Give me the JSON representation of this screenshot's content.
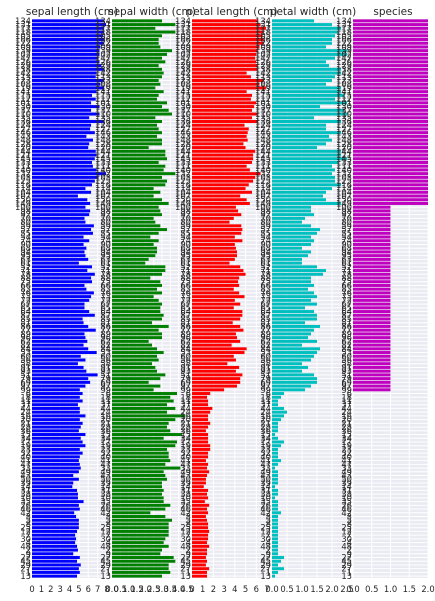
{
  "chart_data": [
    {
      "type": "bar",
      "orientation": "horizontal",
      "title": "sepal length (cm)",
      "color": "#0000ff",
      "xlim": [
        0,
        8
      ],
      "xticks": [
        "0",
        "1",
        "2",
        "3",
        "4",
        "5",
        "6",
        "7",
        "8"
      ]
    },
    {
      "type": "bar",
      "orientation": "horizontal",
      "title": "sepal width (cm)",
      "color": "#008000",
      "xlim": [
        0,
        4.5
      ],
      "xticks": [
        "0.0",
        "0.5",
        "1.0",
        "1.5",
        "2.0",
        "2.5",
        "3.0",
        "3.5",
        "4.0",
        "4.5"
      ]
    },
    {
      "type": "bar",
      "orientation": "horizontal",
      "title": "petal length (cm)",
      "color": "#ff0000",
      "xlim": [
        0,
        7
      ],
      "xticks": [
        "0",
        "1",
        "2",
        "3",
        "4",
        "5",
        "6",
        "7"
      ]
    },
    {
      "type": "bar",
      "orientation": "horizontal",
      "title": "petal width (cm)",
      "color": "#00bfbf",
      "xlim": [
        0,
        2.5
      ],
      "xticks": [
        "0.0",
        "0.5",
        "1.0",
        "1.5",
        "2.0",
        "2.5"
      ]
    },
    {
      "type": "bar",
      "orientation": "horizontal",
      "title": "species",
      "color": "#bf00bf",
      "xlim": [
        0,
        2
      ],
      "xticks": [
        "0.0",
        "0.5",
        "1.0",
        "1.5",
        "2.0"
      ]
    }
  ],
  "categories": [
    "134",
    "131",
    "117",
    "118",
    "105",
    "106",
    "122",
    "109",
    "139",
    "102",
    "147",
    "126",
    "129",
    "138",
    "142",
    "113",
    "123",
    "108",
    "119",
    "141",
    "115",
    "112",
    "101",
    "130",
    "137",
    "110",
    "135",
    "136",
    "124",
    "127",
    "146",
    "143",
    "148",
    "128",
    "120",
    "144",
    "121",
    "145",
    "133",
    "111",
    "140",
    "132",
    "103",
    "125",
    "116",
    "114",
    "104",
    "107",
    "150",
    "149",
    "100",
    "98",
    "92",
    "70",
    "80",
    "59",
    "57",
    "55",
    "54",
    "74",
    "90",
    "68",
    "94",
    "95",
    "63",
    "61",
    "52",
    "71",
    "78",
    "88",
    "75",
    "66",
    "83",
    "76",
    "73",
    "72",
    "67",
    "65",
    "64",
    "87",
    "85",
    "81",
    "86",
    "77",
    "89",
    "96",
    "62",
    "82",
    "84",
    "53",
    "60",
    "56",
    "58",
    "91",
    "93",
    "51",
    "79",
    "69",
    "97",
    "99",
    "6",
    "18",
    "11",
    "37",
    "44",
    "24",
    "16",
    "20",
    "21",
    "28",
    "36",
    "15",
    "34",
    "17",
    "19",
    "23",
    "32",
    "40",
    "41",
    "47",
    "33",
    "49",
    "43",
    "50",
    "39",
    "14",
    "31",
    "38",
    "10",
    "35",
    "26",
    "46",
    "42",
    "3",
    "5",
    "8",
    "25",
    "12",
    "7",
    "30",
    "4",
    "48",
    "2",
    "9",
    "22",
    "45",
    "29",
    "27",
    "1",
    "13"
  ],
  "series": [
    [
      7.7,
      7.9,
      7.7,
      7.7,
      7.6,
      7.7,
      7.7,
      7.3,
      7.2,
      7.2,
      7.1,
      7.2,
      7.4,
      7.7,
      6.9,
      6.8,
      7.7,
      7.3,
      7.7,
      6.9,
      6.4,
      6.8,
      6.3,
      7.2,
      6.3,
      7.2,
      6.1,
      7.7,
      6.3,
      6.2,
      6.7,
      5.8,
      6.5,
      6.1,
      6.0,
      6.8,
      6.9,
      6.7,
      6.4,
      6.5,
      6.9,
      7.9,
      7.1,
      6.7,
      6.4,
      5.7,
      6.3,
      4.9,
      5.9,
      6.2,
      5.7,
      6.2,
      6.1,
      5.6,
      5.7,
      6.6,
      6.3,
      6.5,
      5.5,
      6.1,
      5.5,
      5.8,
      5.6,
      5.7,
      6.0,
      5.0,
      6.4,
      5.9,
      6.7,
      6.3,
      6.4,
      5.6,
      5.8,
      6.6,
      6.3,
      6.1,
      5.6,
      5.6,
      6.1,
      6.7,
      5.4,
      5.5,
      6.0,
      6.8,
      5.6,
      5.7,
      5.9,
      5.5,
      6.0,
      6.9,
      5.2,
      5.7,
      4.9,
      5.5,
      5.8,
      7.0,
      6.0,
      6.2,
      5.7,
      5.1,
      5.4,
      5.1,
      5.4,
      4.9,
      5.1,
      5.1,
      5.7,
      5.1,
      5.4,
      5.2,
      5.0,
      5.7,
      5.2,
      5.4,
      5.7,
      5.1,
      5.4,
      5.1,
      5.0,
      5.1,
      5.2,
      5.0,
      4.4,
      5.0,
      4.4,
      4.3,
      4.8,
      4.9,
      4.9,
      5.5,
      5.0,
      5.1,
      4.5,
      4.7,
      5.0,
      5.0,
      5.0,
      4.8,
      4.6,
      4.7,
      4.6,
      4.8,
      4.9,
      4.4,
      5.1,
      4.8,
      5.2,
      5.0,
      5.1,
      4.8
    ],
    [
      3.0,
      3.8,
      2.6,
      3.8,
      3.0,
      2.8,
      2.8,
      2.9,
      3.6,
      3.3,
      3.0,
      3.2,
      2.8,
      3.0,
      3.1,
      3.0,
      2.8,
      2.9,
      2.6,
      3.1,
      2.8,
      2.7,
      3.3,
      3.0,
      3.4,
      3.6,
      2.6,
      3.0,
      2.7,
      2.8,
      3.0,
      2.7,
      3.0,
      3.0,
      2.2,
      3.2,
      3.2,
      3.3,
      2.8,
      3.2,
      3.1,
      3.8,
      3.0,
      3.3,
      3.2,
      2.5,
      2.9,
      2.5,
      3.0,
      3.4,
      2.8,
      2.9,
      3.0,
      2.5,
      2.6,
      2.9,
      3.3,
      2.8,
      2.3,
      2.8,
      2.5,
      2.7,
      2.7,
      2.6,
      2.2,
      2.0,
      3.2,
      3.2,
      3.0,
      2.3,
      2.9,
      3.0,
      2.7,
      3.0,
      2.5,
      2.8,
      3.0,
      2.9,
      2.9,
      3.1,
      3.0,
      2.4,
      3.4,
      2.8,
      3.0,
      3.0,
      2.2,
      2.4,
      2.7,
      3.1,
      2.7,
      2.8,
      2.4,
      2.6,
      2.7,
      3.2,
      2.9,
      2.2,
      2.9,
      2.5,
      3.9,
      3.5,
      3.7,
      3.3,
      3.8,
      3.3,
      4.4,
      3.8,
      3.4,
      3.3,
      3.5,
      4.2,
      3.1,
      3.9,
      3.8,
      3.3,
      3.4,
      3.4,
      3.5,
      3.2,
      4.1,
      3.1,
      3.2,
      3.3,
      3.0,
      3.0,
      3.1,
      3.0,
      3.1,
      3.1,
      3.5,
      3.2,
      2.3,
      3.2,
      3.6,
      3.4,
      3.4,
      3.4,
      3.4,
      3.2,
      3.1,
      3.4,
      3.0,
      2.9,
      3.7,
      3.8,
      3.4,
      3.4,
      3.5,
      3.0
    ],
    [
      6.1,
      6.4,
      6.9,
      6.7,
      6.6,
      6.7,
      6.7,
      6.3,
      6.1,
      6.0,
      5.9,
      6.0,
      6.1,
      6.1,
      5.1,
      5.5,
      6.7,
      6.3,
      6.9,
      5.1,
      5.6,
      5.5,
      6.0,
      5.8,
      5.6,
      6.1,
      5.6,
      6.1,
      4.9,
      5.3,
      5.2,
      5.1,
      5.2,
      4.8,
      5.0,
      5.9,
      5.7,
      5.7,
      5.6,
      5.1,
      5.4,
      6.4,
      5.9,
      5.7,
      5.3,
      5.0,
      5.6,
      4.5,
      5.1,
      5.4,
      4.1,
      4.3,
      4.6,
      3.9,
      3.5,
      4.6,
      4.7,
      4.6,
      4.0,
      4.7,
      4.0,
      4.1,
      4.2,
      4.2,
      4.0,
      3.5,
      4.5,
      4.8,
      5.0,
      4.4,
      4.3,
      4.4,
      3.9,
      4.4,
      4.9,
      4.0,
      4.5,
      3.9,
      4.7,
      4.7,
      4.5,
      3.8,
      4.5,
      4.8,
      4.1,
      4.2,
      4.5,
      3.7,
      5.1,
      4.9,
      3.9,
      4.1,
      3.3,
      4.4,
      4.1,
      4.7,
      4.5,
      4.5,
      4.2,
      3.0,
      1.7,
      1.4,
      1.5,
      1.5,
      1.9,
      1.7,
      1.5,
      1.5,
      1.7,
      1.5,
      1.3,
      1.5,
      1.5,
      1.5,
      1.7,
      1.7,
      1.5,
      1.5,
      1.3,
      1.5,
      1.4,
      1.6,
      1.4,
      1.3,
      1.3,
      1.1,
      1.5,
      1.4,
      1.5,
      1.2,
      1.6,
      1.4,
      1.5,
      1.3,
      1.4,
      1.5,
      1.5,
      1.6,
      1.5,
      1.5,
      1.4,
      1.6,
      1.4,
      1.4,
      1.3,
      1.4,
      1.3,
      1.6,
      1.4,
      1.4
    ],
    [
      1.4,
      2.0,
      2.3,
      2.2,
      2.1,
      2.0,
      2.0,
      1.8,
      2.5,
      2.5,
      2.1,
      1.8,
      1.9,
      2.3,
      2.3,
      2.1,
      2.0,
      1.8,
      2.3,
      2.3,
      2.4,
      2.1,
      2.5,
      1.6,
      2.4,
      2.5,
      1.4,
      2.3,
      1.8,
      1.8,
      2.3,
      1.9,
      2.0,
      1.8,
      1.5,
      2.3,
      2.3,
      2.5,
      2.2,
      2.0,
      2.1,
      2.0,
      2.1,
      2.1,
      2.3,
      2.0,
      1.8,
      1.7,
      1.8,
      2.3,
      1.3,
      1.3,
      1.4,
      1.1,
      1.0,
      1.3,
      1.6,
      1.5,
      1.3,
      1.4,
      1.3,
      1.0,
      1.3,
      1.2,
      1.0,
      1.0,
      1.5,
      1.8,
      1.7,
      1.3,
      1.3,
      1.4,
      1.2,
      1.4,
      1.5,
      1.3,
      1.5,
      1.1,
      1.4,
      1.5,
      1.5,
      1.1,
      1.6,
      1.4,
      1.3,
      1.2,
      1.5,
      1.0,
      1.6,
      1.5,
      1.4,
      1.3,
      1.0,
      1.2,
      1.0,
      1.4,
      1.5,
      1.5,
      1.3,
      1.1,
      0.4,
      0.3,
      0.2,
      0.2,
      0.4,
      0.5,
      0.4,
      0.3,
      0.2,
      0.2,
      0.2,
      0.1,
      0.2,
      0.4,
      0.3,
      0.2,
      0.2,
      0.2,
      0.3,
      0.2,
      0.1,
      0.2,
      0.2,
      0.2,
      0.2,
      0.1,
      0.2,
      0.2,
      0.1,
      0.2,
      0.2,
      0.2,
      0.3,
      0.2,
      0.2,
      0.2,
      0.2,
      0.2,
      0.2,
      0.2,
      0.2,
      0.2,
      0.2,
      0.2,
      0.4,
      0.3,
      0.2,
      0.4,
      0.2,
      0.1
    ],
    [
      2,
      2,
      2,
      2,
      2,
      2,
      2,
      2,
      2,
      2,
      2,
      2,
      2,
      2,
      2,
      2,
      2,
      2,
      2,
      2,
      2,
      2,
      2,
      2,
      2,
      2,
      2,
      2,
      2,
      2,
      2,
      2,
      2,
      2,
      2,
      2,
      2,
      2,
      2,
      2,
      2,
      2,
      2,
      2,
      2,
      2,
      2,
      2,
      2,
      2,
      1,
      1,
      1,
      1,
      1,
      1,
      1,
      1,
      1,
      1,
      1,
      1,
      1,
      1,
      1,
      1,
      1,
      1,
      1,
      1,
      1,
      1,
      1,
      1,
      1,
      1,
      1,
      1,
      1,
      1,
      1,
      1,
      1,
      1,
      1,
      1,
      1,
      1,
      1,
      1,
      1,
      1,
      1,
      1,
      1,
      1,
      1,
      1,
      1,
      1,
      0,
      0,
      0,
      0,
      0,
      0,
      0,
      0,
      0,
      0,
      0,
      0,
      0,
      0,
      0,
      0,
      0,
      0,
      0,
      0,
      0,
      0,
      0,
      0,
      0,
      0,
      0,
      0,
      0,
      0,
      0,
      0,
      0,
      0,
      0,
      0,
      0,
      0,
      0,
      0,
      0,
      0,
      0,
      0,
      0,
      0,
      0,
      0,
      0,
      0
    ]
  ]
}
